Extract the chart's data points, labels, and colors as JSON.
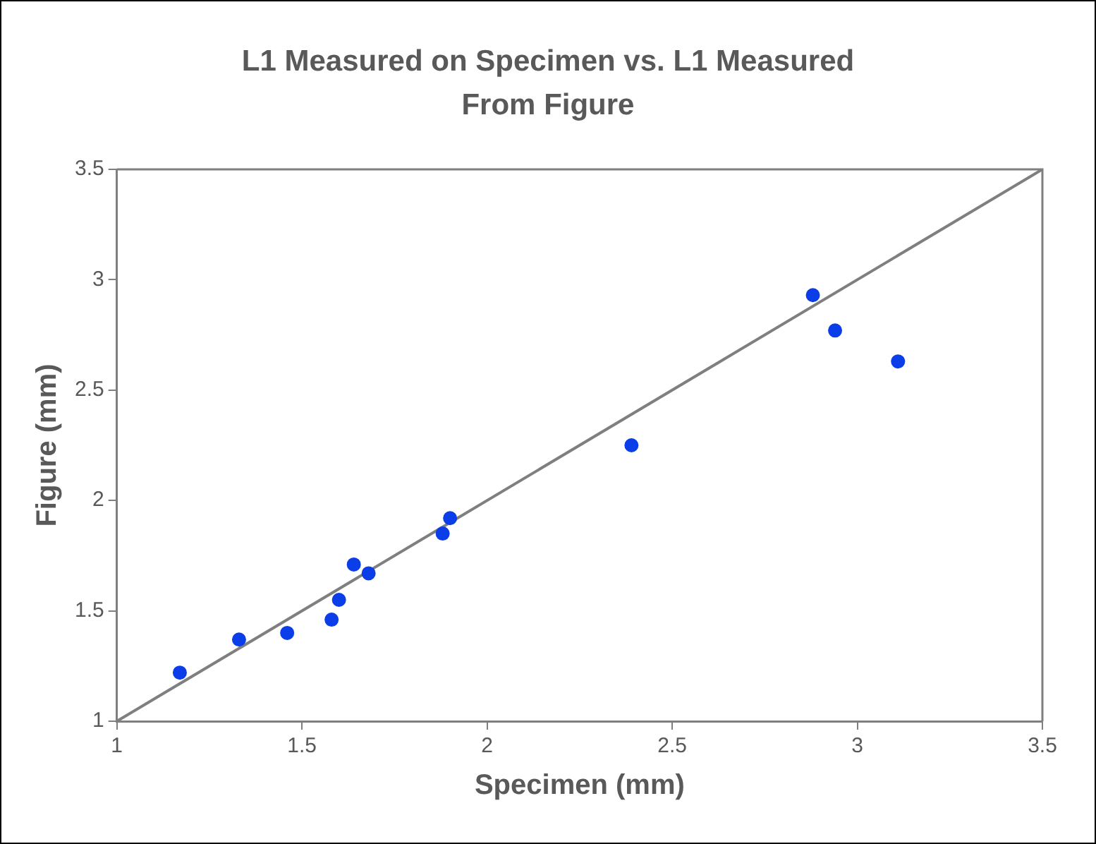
{
  "chart_data": {
    "type": "scatter",
    "title": "L1 Measured on Specimen vs. L1 Measured From Figure",
    "xlabel": "Specimen (mm)",
    "ylabel": "Figure (mm)",
    "xlim": [
      1,
      3.5
    ],
    "xticks": [
      1,
      1.5,
      2,
      2.5,
      3,
      3.5
    ],
    "ylim": [
      1,
      3.5
    ],
    "yticks": [
      1,
      1.5,
      2,
      2.5,
      3,
      3.5
    ],
    "grid": false,
    "legend": false,
    "marker": "circle",
    "series": [
      {
        "type": "scatter",
        "color": "#0b3de8",
        "x": [
          1.17,
          1.33,
          1.46,
          1.58,
          1.6,
          1.64,
          1.68,
          1.88,
          1.9,
          2.39,
          2.88,
          2.94,
          3.11
        ],
        "values": [
          1.22,
          1.37,
          1.4,
          1.46,
          1.55,
          1.71,
          1.67,
          1.85,
          1.92,
          2.25,
          2.93,
          2.77,
          2.63
        ]
      },
      {
        "type": "line",
        "color": "#7f7f7f",
        "line_style": "solid",
        "marker": "none",
        "x": [
          1,
          3.5
        ],
        "values": [
          1,
          3.5
        ]
      }
    ]
  }
}
